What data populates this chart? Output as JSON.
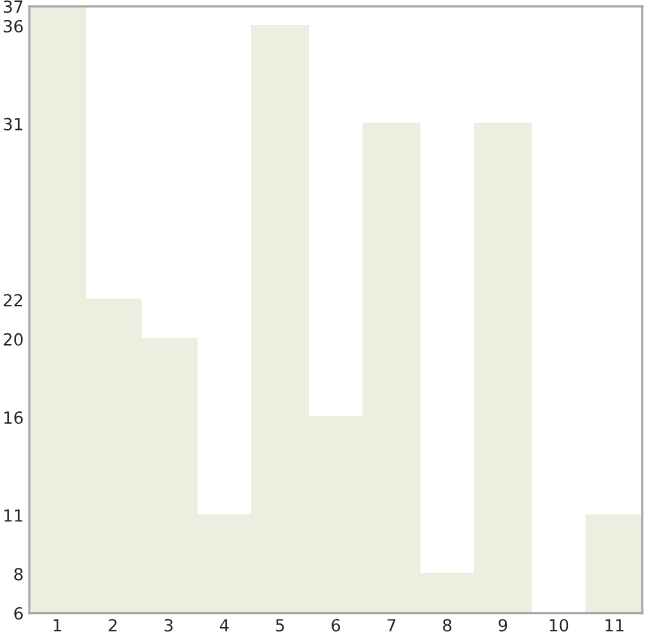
{
  "chart_data": {
    "type": "bar",
    "categories": [
      "1",
      "2",
      "3",
      "4",
      "5",
      "6",
      "7",
      "8",
      "9",
      "10",
      "11"
    ],
    "values": [
      37,
      22,
      20,
      11,
      36,
      16,
      31,
      8,
      31,
      6,
      11
    ],
    "color": "#eeeee0",
    "ylim": [
      6,
      37
    ],
    "yticks": [
      6,
      8,
      11,
      16,
      20,
      22,
      31,
      36,
      37
    ],
    "grid": false
  }
}
